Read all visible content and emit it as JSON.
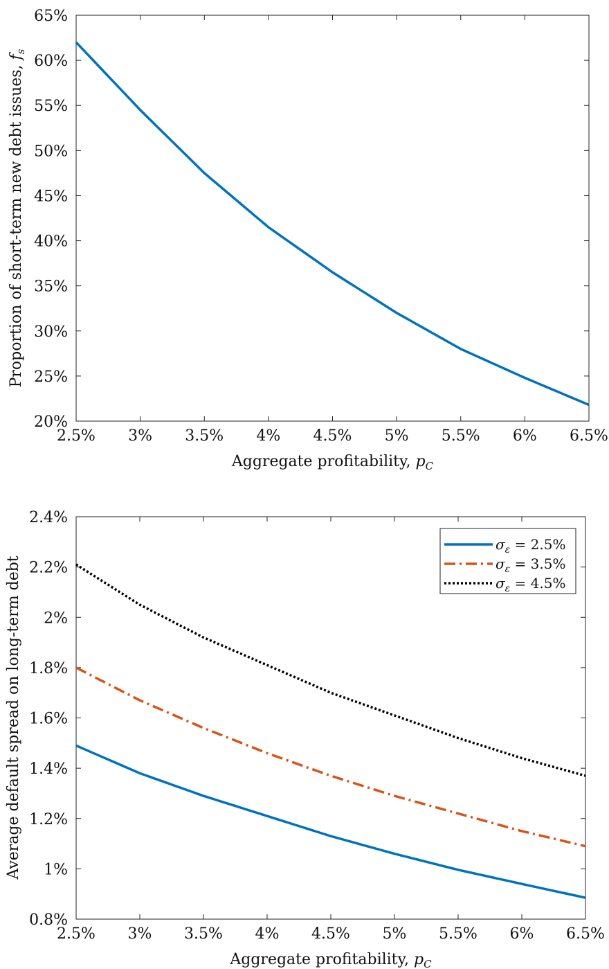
{
  "chart_data": [
    {
      "type": "line",
      "xlabel": "Aggregate profitability, p_C",
      "ylabel": "Proportion of short-term new debt issues, f_s",
      "xlim": [
        2.5,
        6.5
      ],
      "ylim": [
        20,
        65
      ],
      "xticks": [
        2.5,
        3,
        3.5,
        4,
        4.5,
        5,
        5.5,
        6,
        6.5
      ],
      "xtick_labels": [
        "2.5%",
        "3%",
        "3.5%",
        "4%",
        "4.5%",
        "5%",
        "5.5%",
        "6%",
        "6.5%"
      ],
      "yticks": [
        20,
        25,
        30,
        35,
        40,
        45,
        50,
        55,
        60,
        65
      ],
      "ytick_labels": [
        "20%",
        "25%",
        "30%",
        "35%",
        "40%",
        "45%",
        "50%",
        "55%",
        "60%",
        "65%"
      ],
      "grid": false,
      "series": [
        {
          "color": "#0072BD",
          "style": "solid",
          "x": [
            2.5,
            3.0,
            3.5,
            4.0,
            4.5,
            5.0,
            5.5,
            6.0,
            6.5
          ],
          "y": [
            62.0,
            54.5,
            47.5,
            41.5,
            36.5,
            32.0,
            28.0,
            24.8,
            21.8
          ]
        }
      ]
    },
    {
      "type": "line",
      "xlabel": "Aggregate profitability, p_C",
      "ylabel": "Average default spread on long-term debt",
      "xlim": [
        2.5,
        6.5
      ],
      "ylim": [
        0.8,
        2.4
      ],
      "xticks": [
        2.5,
        3,
        3.5,
        4,
        4.5,
        5,
        5.5,
        6,
        6.5
      ],
      "xtick_labels": [
        "2.5%",
        "3%",
        "3.5%",
        "4%",
        "4.5%",
        "5%",
        "5.5%",
        "6%",
        "6.5%"
      ],
      "yticks": [
        0.8,
        1.0,
        1.2,
        1.4,
        1.6,
        1.8,
        2.0,
        2.2,
        2.4
      ],
      "ytick_labels": [
        "0.8%",
        "1%",
        "1.2%",
        "1.4%",
        "1.6%",
        "1.8%",
        "2%",
        "2.2%",
        "2.4%"
      ],
      "grid": false,
      "legend_position": "top-right",
      "series": [
        {
          "name": "σ_ε = 2.5%",
          "color": "#0072BD",
          "style": "solid",
          "x": [
            2.5,
            3.0,
            3.5,
            4.0,
            4.5,
            5.0,
            5.5,
            6.0,
            6.5
          ],
          "y": [
            1.49,
            1.38,
            1.29,
            1.21,
            1.13,
            1.06,
            0.996,
            0.94,
            0.885
          ]
        },
        {
          "name": "σ_ε = 3.5%",
          "color": "#D95319",
          "style": "dashdot",
          "x": [
            2.5,
            3.0,
            3.5,
            4.0,
            4.5,
            5.0,
            5.5,
            6.0,
            6.5
          ],
          "y": [
            1.8,
            1.67,
            1.56,
            1.46,
            1.37,
            1.29,
            1.22,
            1.15,
            1.09
          ]
        },
        {
          "name": "σ_ε = 4.5%",
          "color": "#000000",
          "style": "dotted",
          "x": [
            2.5,
            3.0,
            3.5,
            4.0,
            4.5,
            5.0,
            5.5,
            6.0,
            6.5
          ],
          "y": [
            2.21,
            2.05,
            1.92,
            1.81,
            1.7,
            1.61,
            1.52,
            1.44,
            1.37
          ]
        }
      ]
    }
  ]
}
